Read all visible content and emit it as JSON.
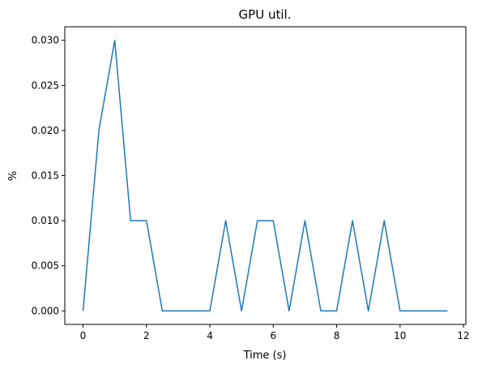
{
  "chart_data": {
    "type": "line",
    "title": "GPU util.",
    "xlabel": "Time (s)",
    "ylabel": "%",
    "xlim": [
      -0.575,
      12.075
    ],
    "ylim": [
      -0.0015,
      0.0315
    ],
    "x_ticks": [
      0,
      2,
      4,
      6,
      8,
      10,
      12
    ],
    "x_tick_labels": [
      "0",
      "2",
      "4",
      "6",
      "8",
      "10",
      "12"
    ],
    "y_ticks": [
      0.0,
      0.005,
      0.01,
      0.015,
      0.02,
      0.025,
      0.03
    ],
    "y_tick_labels": [
      "0.000",
      "0.005",
      "0.010",
      "0.015",
      "0.020",
      "0.025",
      "0.030"
    ],
    "grid": false,
    "series": [
      {
        "color": "#1f77b4",
        "x": [
          0,
          0.5,
          1,
          1.5,
          2,
          2.5,
          3,
          3.5,
          4,
          4.5,
          5,
          5.5,
          6,
          6.5,
          7,
          7.5,
          8,
          8.5,
          9,
          9.5,
          10,
          10.5,
          11,
          11.5
        ],
        "y": [
          0.0,
          0.02,
          0.03,
          0.01,
          0.01,
          0.0,
          0.0,
          0.0,
          0.0,
          0.01,
          0.0,
          0.01,
          0.01,
          0.0,
          0.01,
          0.0,
          0.0,
          0.01,
          0.0,
          0.01,
          0.0,
          0.0,
          0.0,
          0.0
        ]
      }
    ]
  }
}
